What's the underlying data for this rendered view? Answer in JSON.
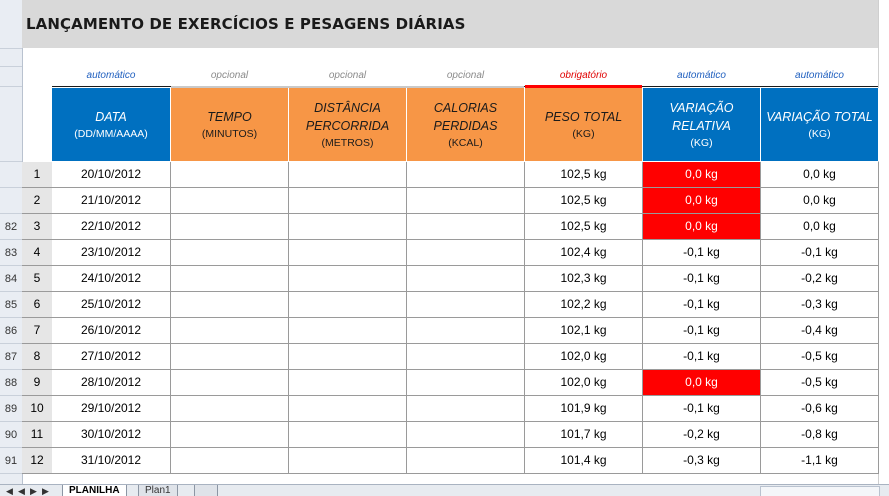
{
  "title": "LANÇAMENTO DE EXERCÍCIOS E PESAGENS DIÁRIAS",
  "row_headers": [
    "82",
    "83",
    "84",
    "85",
    "86",
    "87",
    "88",
    "89",
    "90",
    "91"
  ],
  "hints": {
    "data": "automático",
    "tempo": "opcional",
    "distancia": "opcional",
    "calorias": "opcional",
    "peso": "obrigatório",
    "var_rel": "automático",
    "var_tot": "automático"
  },
  "columns": {
    "data": {
      "main": "DATA",
      "unit": "(DD/MM/AAAA)"
    },
    "tempo": {
      "main": "TEMPO",
      "unit": "(MINUTOS)"
    },
    "distancia": {
      "main1": "DISTÂNCIA",
      "main2": "PERCORRIDA",
      "unit": "(METROS)"
    },
    "calorias": {
      "main1": "CALORIAS",
      "main2": "PERDIDAS",
      "unit": "(KCAL)"
    },
    "peso": {
      "main": "PESO TOTAL",
      "unit": "(KG)"
    },
    "var_rel": {
      "main1": "VARIAÇÃO",
      "main2": "RELATIVA",
      "unit": "(KG)"
    },
    "var_tot": {
      "main": "VARIAÇÃO TOTAL",
      "unit": "(KG)"
    }
  },
  "rows": [
    {
      "n": "1",
      "date": "20/10/2012",
      "peso": "102,5 kg",
      "var_rel": "0,0 kg",
      "var_tot": "0,0 kg",
      "highlight": true
    },
    {
      "n": "2",
      "date": "21/10/2012",
      "peso": "102,5 kg",
      "var_rel": "0,0 kg",
      "var_tot": "0,0 kg",
      "highlight": true
    },
    {
      "n": "3",
      "date": "22/10/2012",
      "peso": "102,5 kg",
      "var_rel": "0,0 kg",
      "var_tot": "0,0 kg",
      "highlight": true
    },
    {
      "n": "4",
      "date": "23/10/2012",
      "peso": "102,4 kg",
      "var_rel": "-0,1 kg",
      "var_tot": "-0,1 kg",
      "highlight": false
    },
    {
      "n": "5",
      "date": "24/10/2012",
      "peso": "102,3 kg",
      "var_rel": "-0,1 kg",
      "var_tot": "-0,2 kg",
      "highlight": false
    },
    {
      "n": "6",
      "date": "25/10/2012",
      "peso": "102,2 kg",
      "var_rel": "-0,1 kg",
      "var_tot": "-0,3 kg",
      "highlight": false
    },
    {
      "n": "7",
      "date": "26/10/2012",
      "peso": "102,1 kg",
      "var_rel": "-0,1 kg",
      "var_tot": "-0,4 kg",
      "highlight": false
    },
    {
      "n": "8",
      "date": "27/10/2012",
      "peso": "102,0 kg",
      "var_rel": "-0,1 kg",
      "var_tot": "-0,5 kg",
      "highlight": false
    },
    {
      "n": "9",
      "date": "28/10/2012",
      "peso": "102,0 kg",
      "var_rel": "0,0 kg",
      "var_tot": "-0,5 kg",
      "highlight": true
    },
    {
      "n": "10",
      "date": "29/10/2012",
      "peso": "101,9 kg",
      "var_rel": "-0,1 kg",
      "var_tot": "-0,6 kg",
      "highlight": false
    },
    {
      "n": "11",
      "date": "30/10/2012",
      "peso": "101,7 kg",
      "var_rel": "-0,2 kg",
      "var_tot": "-0,8 kg",
      "highlight": false
    },
    {
      "n": "12",
      "date": "31/10/2012",
      "peso": "101,4 kg",
      "var_rel": "-0,3 kg",
      "var_tot": "-1,1 kg",
      "highlight": false
    }
  ],
  "sheet_tabs": {
    "active": "PLANILHA",
    "other": "Plan1"
  },
  "colors": {
    "blue_header": "#0070c0",
    "orange_header": "#f79646",
    "alert": "#ff0000"
  }
}
